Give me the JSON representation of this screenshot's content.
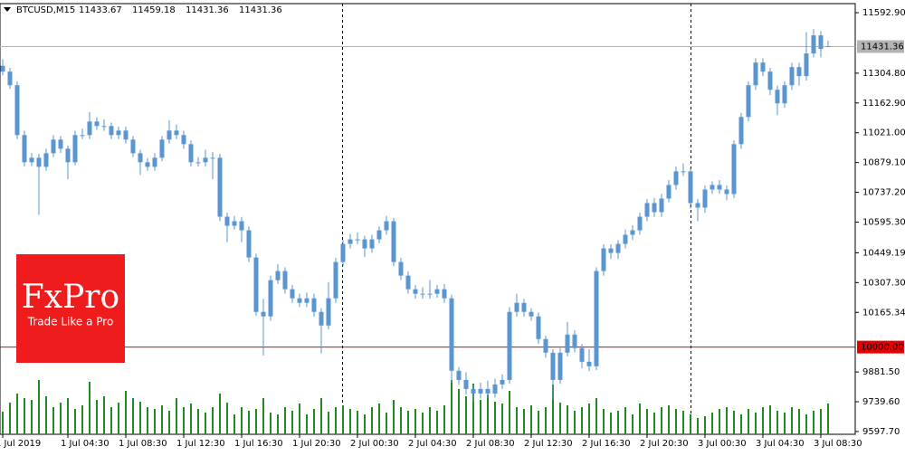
{
  "chart_data": {
    "type": "candlestick",
    "symbol": "BTCUSD,M15",
    "header_ohlc": [
      11433.67,
      11459.18,
      11431.36,
      11431.36
    ],
    "logo": {
      "name": "FxPro",
      "tagline": "Trade Like a Pro"
    },
    "candle_color": "#5a96d2",
    "volume_color": "#1e8c1e",
    "open": [
      11340,
      11312.2,
      11247.4,
      11009.9,
      10880.3,
      10901.9,
      10858.7,
      10923.5,
      10988.3,
      10945.1,
      10880.3,
      11009.9,
      11009.9,
      11074.6,
      11053.0,
      11053.0,
      11009.9,
      11031.4,
      10988.3,
      10923.5,
      10880.3,
      10858.7,
      10901.9,
      10988.3,
      11031.4,
      11009.9,
      10966.7,
      10880.3,
      10880.3,
      10901.9,
      10901.9,
      10621.1,
      10577.9,
      10599.5,
      10556.4,
      10426.8,
      10167.6,
      10146.1,
      10318.8,
      10362.0,
      10275.6,
      10232.4,
      10210.8,
      10232.4,
      10167.6,
      10102.9,
      10232.4,
      10405.2,
      10491.6,
      10513.1,
      10513.1,
      10469.9,
      10513.1,
      10556.4,
      10599.5,
      10405.2,
      10340.4,
      10275.6,
      10254.0,
      10254.0,
      10254.0,
      10275.6,
      10232.4,
      9887.1,
      9843.7,
      9800.5,
      9778.9,
      9800.5,
      9778.9,
      9822.1,
      9843.7,
      10167.6,
      10210.8,
      10167.6,
      10146.1,
      10038.1,
      9973.3,
      9843.7,
      9973.3,
      10059.7,
      9994.9,
      9930.1,
      9908.5,
      10362.0,
      10469.9,
      10448.4,
      10491.6,
      10534.8,
      10556.4,
      10621.1,
      10685.9,
      10642.7,
      10707.5,
      10772.3,
      10837.1,
      10837.1,
      10685.9,
      10664.3,
      10750.7,
      10772.3,
      10750.7,
      10729.1,
      10966.7,
      11096.2,
      11247.4,
      11355.4,
      11312.2,
      11225.8,
      11161.0,
      11247.4,
      11333.8,
      11290.6,
      11398.6,
      11485.0,
      11433.67
    ],
    "high": [
      11372,
      11330,
      11265,
      11030,
      10925,
      10920,
      10945,
      11010,
      11005,
      10960,
      11030,
      11040,
      11120,
      11095,
      11085,
      11070,
      11050,
      11050,
      11005,
      10940,
      10900,
      10925,
      11005,
      11080,
      11060,
      11030,
      10985,
      10905,
      10940,
      10930,
      10920,
      10640,
      10625,
      10620,
      10575,
      10445,
      10230,
      10340,
      10395,
      10380,
      10295,
      10255,
      10260,
      10255,
      10185,
      10310,
      10425,
      10510,
      10540,
      10545,
      10530,
      10535,
      10575,
      10625,
      10615,
      10425,
      10360,
      10295,
      10285,
      10320,
      10295,
      10300,
      10250,
      9905,
      9880,
      9820,
      9830,
      9840,
      9850,
      9870,
      10190,
      10255,
      10230,
      10185,
      10165,
      10055,
      9990,
      9995,
      10120,
      10080,
      10015,
      9990,
      10380,
      10490,
      10490,
      10510,
      10560,
      10580,
      10640,
      10705,
      10710,
      10730,
      10795,
      10860,
      10875,
      10855,
      10705,
      10770,
      10790,
      10795,
      10770,
      10985,
      11115,
      11265,
      11375,
      11375,
      11330,
      11245,
      11265,
      11355,
      11355,
      11500,
      11515,
      11505,
      11459.18
    ],
    "low": [
      11295,
      11230,
      10990,
      10860,
      10862,
      10630,
      10840,
      10905,
      10925,
      10800,
      10865,
      10990,
      10990,
      11035,
      11030,
      10990,
      10990,
      10970,
      10905,
      10820,
      10840,
      10840,
      10885,
      10970,
      10990,
      10945,
      10860,
      10860,
      10860,
      10800,
      10600,
      10500,
      10560,
      10500,
      10405,
      10150,
      9960,
      10125,
      10300,
      10255,
      10210,
      10190,
      10190,
      10145,
      9970,
      10085,
      10210,
      10385,
      10470,
      10490,
      10430,
      10450,
      10495,
      10535,
      10385,
      10320,
      10255,
      10230,
      10230,
      10230,
      10235,
      10210,
      9830,
      9820,
      9775,
      9740,
      9755,
      9755,
      9760,
      9800,
      9825,
      10145,
      10145,
      10125,
      10015,
      9950,
      9750,
      9825,
      9955,
      9975,
      9900,
      9885,
      9890,
      10340,
      10420,
      10420,
      10470,
      10510,
      10535,
      10600,
      10620,
      10620,
      10690,
      10750,
      10815,
      10660,
      10600,
      10640,
      10730,
      10730,
      10700,
      10710,
      10945,
      11075,
      11225,
      11290,
      11200,
      11105,
      11140,
      11225,
      11245,
      11270,
      11380,
      11380,
      11431.36
    ],
    "close": [
      11312.2,
      11247.4,
      11009.9,
      10880.3,
      10901.9,
      10858.7,
      10923.5,
      10988.3,
      10945.1,
      10880.3,
      11009.9,
      11009.9,
      11074.6,
      11053.0,
      11053.0,
      11009.9,
      11031.4,
      10988.3,
      10923.5,
      10880.3,
      10858.7,
      10901.9,
      10988.3,
      11031.4,
      11009.9,
      10966.7,
      10880.3,
      10880.3,
      10901.9,
      10901.9,
      10621.1,
      10577.9,
      10599.5,
      10556.4,
      10426.8,
      10167.6,
      10146.1,
      10318.8,
      10362.0,
      10275.6,
      10232.4,
      10210.8,
      10232.4,
      10167.6,
      10102.9,
      10232.4,
      10405.2,
      10491.6,
      10513.1,
      10513.1,
      10469.9,
      10513.1,
      10556.4,
      10599.5,
      10405.2,
      10340.4,
      10275.6,
      10254.0,
      10254.0,
      10254.0,
      10275.6,
      10232.4,
      9887.1,
      9843.7,
      9800.5,
      9778.9,
      9800.5,
      9778.9,
      9822.1,
      9843.7,
      10167.6,
      10210.8,
      10167.6,
      10146.1,
      10038.1,
      9973.3,
      9843.7,
      9973.3,
      10059.7,
      9994.9,
      9930.1,
      9908.5,
      10362.0,
      10469.9,
      10448.4,
      10491.6,
      10534.8,
      10556.4,
      10621.1,
      10685.9,
      10642.7,
      10707.5,
      10772.3,
      10837.1,
      10837.1,
      10685.9,
      10664.3,
      10750.7,
      10772.3,
      10750.7,
      10729.1,
      10966.7,
      11096.2,
      11247.4,
      11355.4,
      11312.2,
      11225.8,
      11161.0,
      11247.4,
      11333.8,
      11290.6,
      11398.6,
      11485.0,
      11420.2,
      11431.36
    ],
    "volume": [
      25,
      35,
      45,
      40,
      38,
      60,
      42,
      30,
      35,
      40,
      28,
      32,
      58,
      38,
      42,
      30,
      35,
      48,
      40,
      36,
      30,
      28,
      32,
      26,
      40,
      30,
      34,
      28,
      24,
      30,
      45,
      35,
      22,
      30,
      26,
      28,
      40,
      24,
      22,
      30,
      26,
      34,
      22,
      28,
      40,
      25,
      30,
      32,
      28,
      26,
      22,
      30,
      34,
      24,
      38,
      30,
      26,
      28,
      24,
      30,
      26,
      32,
      60,
      50,
      42,
      56,
      38,
      44,
      36,
      34,
      48,
      30,
      28,
      32,
      26,
      30,
      55,
      35,
      32,
      26,
      30,
      34,
      40,
      28,
      24,
      26,
      30,
      22,
      34,
      28,
      24,
      30,
      32,
      28,
      26,
      22,
      18,
      20,
      24,
      28,
      30,
      26,
      22,
      28,
      24,
      30,
      32,
      26,
      24,
      30,
      28,
      22,
      26,
      28,
      34
    ],
    "vlim": [
      0,
      100
    ],
    "xlim": [
      -0.375,
      117.75
    ],
    "ylim": [
      9584.6,
      11636.1
    ],
    "xticks": [
      {
        "value": 0,
        "label": "1 Jul 2019"
      },
      {
        "value": 9,
        "label": "1 Jul 04:30"
      },
      {
        "value": 17,
        "label": "1 Jul 08:30"
      },
      {
        "value": 25,
        "label": "1 Jul 12:30"
      },
      {
        "value": 33,
        "label": "1 Jul 16:30"
      },
      {
        "value": 41,
        "label": "1 Jul 20:30"
      },
      {
        "value": 49,
        "label": "2 Jul 00:30"
      },
      {
        "value": 57,
        "label": "2 Jul 04:30"
      },
      {
        "value": 65,
        "label": "2 Jul 08:30"
      },
      {
        "value": 73,
        "label": "2 Jul 12:30"
      },
      {
        "value": 81,
        "label": "2 Jul 16:30"
      },
      {
        "value": 89,
        "label": "2 Jul 20:30"
      },
      {
        "value": 97,
        "label": "3 Jul 00:30"
      },
      {
        "value": 105,
        "label": "3 Jul 04:30"
      },
      {
        "value": 113,
        "label": "3 Jul 08:30"
      }
    ],
    "yticks": [
      {
        "value": 11592.9,
        "label": "11592.90"
      },
      {
        "value": 11304.8,
        "label": "11304.80"
      },
      {
        "value": 11162.9,
        "label": "11162.90"
      },
      {
        "value": 11021,
        "label": "11021.00"
      },
      {
        "value": 10879.1,
        "label": "10879.10"
      },
      {
        "value": 10737.2,
        "label": "10737.20"
      },
      {
        "value": 10595.3,
        "label": "10595.30"
      },
      {
        "value": 10449.19,
        "label": "10449.19"
      },
      {
        "value": 10307.3,
        "label": "10307.30"
      },
      {
        "value": 10165.34,
        "label": "10165.34"
      },
      {
        "value": 9881.5,
        "label": "9881.50"
      },
      {
        "value": 9739.6,
        "label": "9739.60"
      },
      {
        "value": 9597.7,
        "label": "9597.70"
      }
    ],
    "hlines": [
      {
        "value": 11431.36,
        "label": "11431.36",
        "color": "#b4b4b4"
      },
      {
        "value": 10000,
        "label": "10000.00",
        "color": "#e60000"
      }
    ]
  }
}
